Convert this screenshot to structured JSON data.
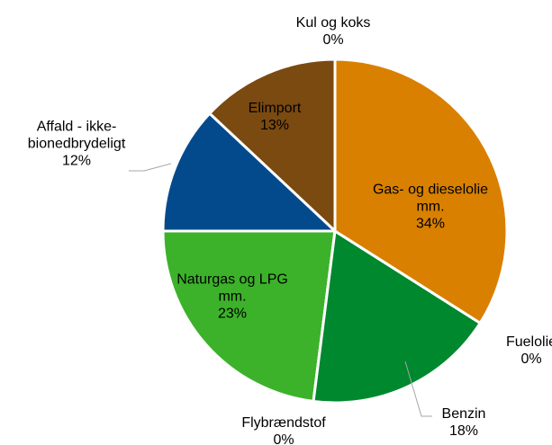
{
  "chart_data": {
    "type": "pie",
    "categories": [
      "Gas- og dieselolie mm.",
      "Fuelolie",
      "Benzin",
      "Flybrændstof",
      "Naturgas og LPG mm.",
      "Affald - ikke-bionedbrydeligt",
      "Elimport",
      "Kul og koks"
    ],
    "values": [
      34,
      0,
      18,
      0,
      23,
      12,
      13,
      0
    ],
    "value_labels": [
      "34%",
      "0%",
      "18%",
      "0%",
      "23%",
      "12%",
      "13%",
      "0%"
    ],
    "colors": [
      "#d98000",
      "#c0504d",
      "#00882e",
      "#9bbb59",
      "#3cb22a",
      "#024a8c",
      "#7b4a10",
      "#595959"
    ]
  }
}
